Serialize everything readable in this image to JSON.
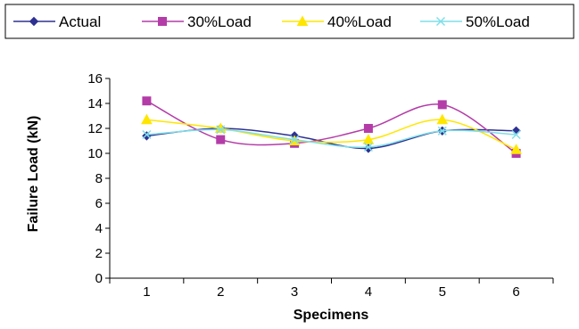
{
  "chart_data": {
    "type": "line",
    "title": "",
    "xlabel": "Specimens",
    "ylabel": "Failure Load (kN)",
    "categories": [
      "1",
      "2",
      "3",
      "4",
      "5",
      "6"
    ],
    "ylim": [
      0,
      16
    ],
    "yticks": [
      "0",
      "2",
      "4",
      "6",
      "8",
      "10",
      "12",
      "14",
      "16"
    ],
    "grid": false,
    "legend_position": "top",
    "smooth": true,
    "series": [
      {
        "name": "Actual",
        "values": [
          11.4,
          12.0,
          11.4,
          10.4,
          11.8,
          11.8
        ],
        "color": "#2E3192",
        "marker": "diamond"
      },
      {
        "name": "30%Load",
        "values": [
          14.2,
          11.1,
          10.8,
          12.0,
          13.9,
          10.0
        ],
        "color": "#B43CA8",
        "marker": "square"
      },
      {
        "name": "40%Load",
        "values": [
          12.7,
          12.0,
          11.0,
          11.1,
          12.7,
          10.3
        ],
        "color": "#FFE600",
        "marker": "triangle"
      },
      {
        "name": "50%Load",
        "values": [
          11.5,
          11.9,
          11.1,
          10.5,
          11.8,
          11.5
        ],
        "color": "#7FDFE8",
        "marker": "x"
      }
    ]
  }
}
